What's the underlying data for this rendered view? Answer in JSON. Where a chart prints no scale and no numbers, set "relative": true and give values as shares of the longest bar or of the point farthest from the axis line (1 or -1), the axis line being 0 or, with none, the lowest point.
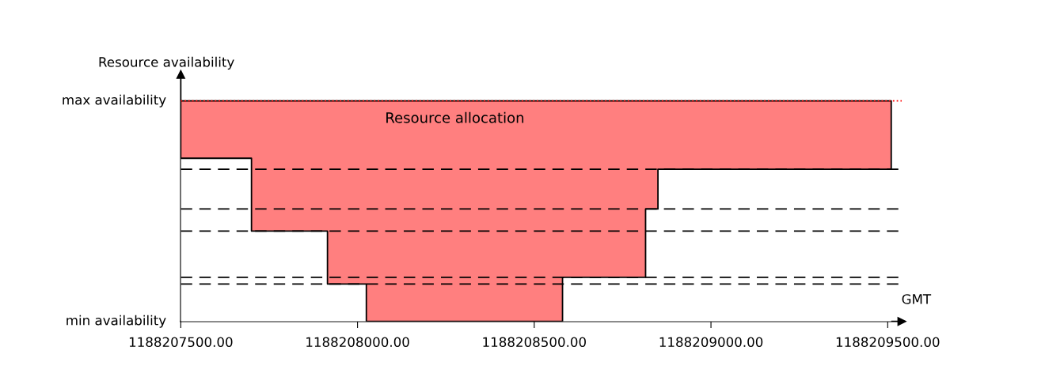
{
  "chart_data": {
    "type": "area",
    "stacked": true,
    "relative": true,
    "ylabel": "Resource availability",
    "xlabel": "GMT",
    "x": [
      1188207500,
      1188207700,
      1188207700,
      1188207915,
      1188207915,
      1188208025,
      1188208025,
      1188208580,
      1188208580,
      1188208815,
      1188208815,
      1188208850,
      1188208850,
      1188209510
    ],
    "series": [
      {
        "color": "#ffffff",
        "values": [
          0.74,
          0.74,
          0.41,
          0.41,
          0.17,
          0.17,
          0.0,
          0.0,
          0.2,
          0.2,
          0.51,
          0.51,
          0.69,
          0.69
        ]
      },
      {
        "color": "#ff7f7f",
        "values": [
          0.26,
          0.26,
          0.59,
          0.59,
          0.83,
          0.83,
          1.0,
          1.0,
          0.8,
          0.8,
          0.49,
          0.49,
          0.31,
          0.31
        ]
      }
    ],
    "xlim": [
      1188207500,
      1188209540
    ],
    "xticks": [
      {
        "value": 1188207500,
        "label": "1188207500.00"
      },
      {
        "value": 1188208000,
        "label": "1188208000.00"
      },
      {
        "value": 1188208500,
        "label": "1188208500.00"
      },
      {
        "value": 1188209000,
        "label": "1188209000.00"
      },
      {
        "value": 1188209500,
        "label": "1188209500.00"
      }
    ],
    "annotations": [
      "Resource allocation",
      "min availability"
    ],
    "ref_lines": [
      {
        "axis": "y",
        "value": 1,
        "color": "#ff0000",
        "line_style": "dotted",
        "label": "max availability"
      },
      {
        "axis": "y",
        "value": 0.69,
        "color": "#000000",
        "line_style": "dashed"
      },
      {
        "axis": "y",
        "value": 0.51,
        "color": "#000000",
        "line_style": "dashed"
      },
      {
        "axis": "y",
        "value": 0.41,
        "color": "#000000",
        "line_style": "dashed"
      },
      {
        "axis": "y",
        "value": 0.2,
        "color": "#000000",
        "line_style": "dashed"
      },
      {
        "axis": "y",
        "value": 0.17,
        "color": "#000000",
        "line_style": "dashed"
      }
    ],
    "grid": false,
    "legend": false
  }
}
